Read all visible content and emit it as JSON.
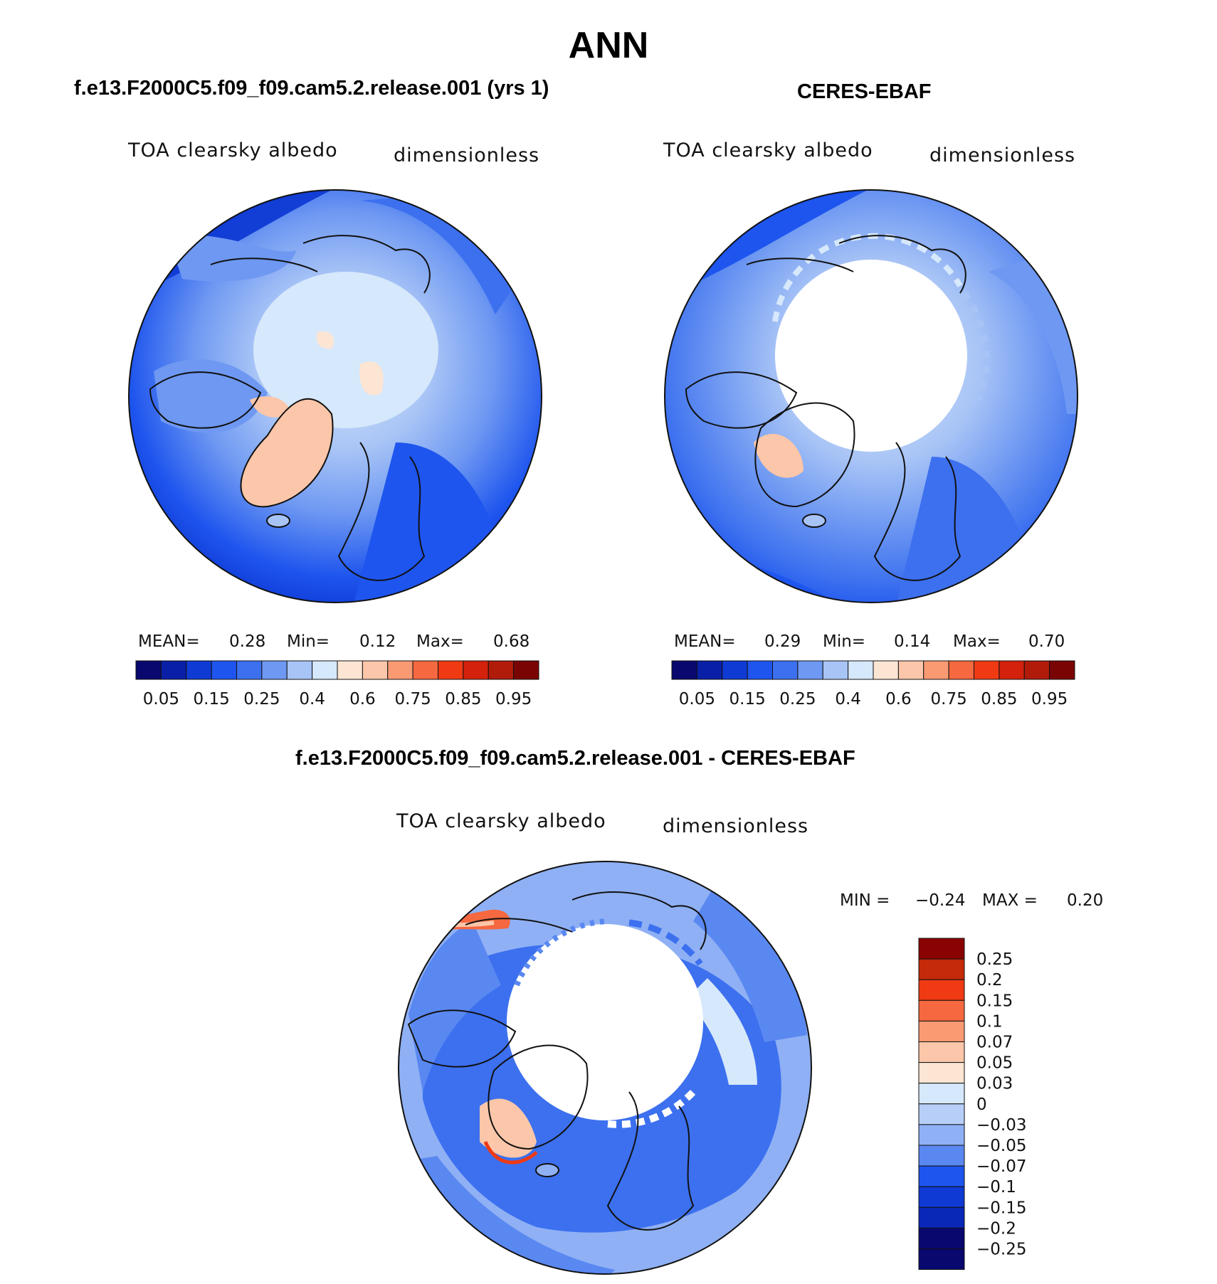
{
  "season": "ANN",
  "colors": {
    "abs": [
      "#08086e",
      "#0a1fa8",
      "#0f3ad4",
      "#1e55ee",
      "#3c70ef",
      "#6e98f2",
      "#a8c4f6",
      "#d6e8fb",
      "#fde5d4",
      "#fbc6a9",
      "#f99a73",
      "#f6683f",
      "#ef3a14",
      "#d3210c",
      "#b01b0a",
      "#7a0404"
    ],
    "diff": [
      "#08086e",
      "#0a28b8",
      "#0f3ad4",
      "#1e55ee",
      "#5a88f1",
      "#8fb0f4",
      "#b7cff8",
      "#d6e8fb",
      "#fde5d4",
      "#fbc6a9",
      "#f99a73",
      "#f6683f",
      "#ef3a14",
      "#c52a0a",
      "#8a0303"
    ]
  },
  "panels": {
    "model": {
      "title": "f.e13.F2000C5.f09_f09.cam5.2.release.001 (yrs 1)",
      "variable": "TOA clearsky albedo",
      "units": "dimensionless",
      "mean_label": "MEAN=",
      "mean": "0.28",
      "min_label": "Min=",
      "min": "0.12",
      "max_label": "Max=",
      "max": "0.68"
    },
    "obs": {
      "title": "CERES-EBAF",
      "variable": "TOA clearsky albedo",
      "units": "dimensionless",
      "mean_label": "MEAN=",
      "mean": "0.29",
      "min_label": "Min=",
      "min": "0.14",
      "max_label": "Max=",
      "max": "0.70"
    },
    "diff": {
      "title": "f.e13.F2000C5.f09_f09.cam5.2.release.001 - CERES-EBAF",
      "variable": "TOA clearsky albedo",
      "units": "dimensionless",
      "min_label": "MIN =",
      "min": "−0.24",
      "max_label": "MAX =",
      "max": "0.20"
    }
  },
  "colorbar_abs_labels": [
    "0.05",
    "0.15",
    "0.25",
    "0.4",
    "0.6",
    "0.75",
    "0.85",
    "0.95"
  ],
  "colorbar_diff_labels": [
    "0.25",
    "0.2",
    "0.15",
    "0.1",
    "0.07",
    "0.05",
    "0.03",
    "0",
    "−0.03",
    "−0.05",
    "−0.07",
    "−0.1",
    "−0.15",
    "−0.2",
    "−0.25"
  ]
}
